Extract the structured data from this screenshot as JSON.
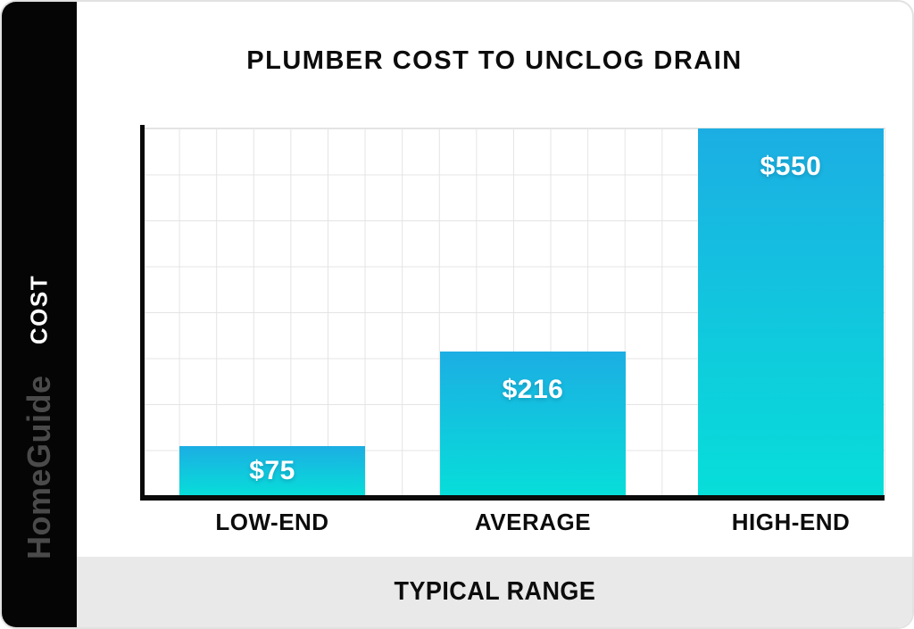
{
  "sidebar": {
    "axis_label": "COST",
    "watermark": "HomeGuide"
  },
  "chart_data": {
    "type": "bar",
    "title": "PLUMBER COST TO UNCLOG DRAIN",
    "categories": [
      "LOW-END",
      "AVERAGE",
      "HIGH-END"
    ],
    "values": [
      75,
      216,
      550
    ],
    "value_labels": [
      "$75",
      "$216",
      "$550"
    ],
    "xlabel": "TYPICAL RANGE",
    "ylabel": "COST",
    "ylim": [
      0,
      550
    ],
    "grid": true,
    "legend": "none",
    "colors": {
      "bar_gradient_top": "#1caee3",
      "bar_gradient_bottom": "#07ded9",
      "axis": "#0a0a0a",
      "gridline": "#e4e4e4",
      "sidebar_bg": "#050505",
      "band_bg": "#e9e9e9",
      "value_label_text": "#ffffff"
    }
  }
}
